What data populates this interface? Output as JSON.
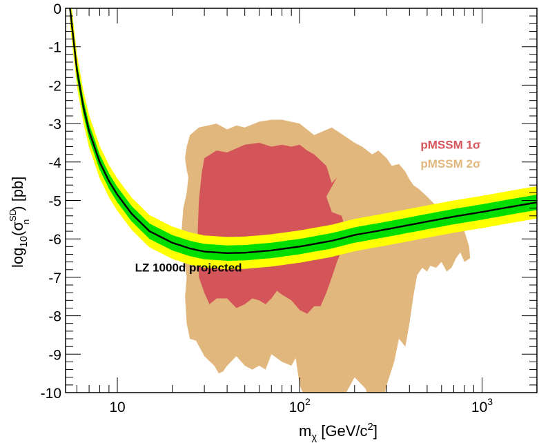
{
  "chart_data": {
    "type": "line",
    "x_scale": "log",
    "xlim": [
      5.2,
      2000
    ],
    "ylim": [
      -10,
      0
    ],
    "xlabel": "m_χ [GeV/c²]",
    "xlabel_parts": {
      "main": "m",
      "sub": "χ",
      "rest": " [GeV/c",
      "sup": "2",
      "close": "]"
    },
    "ylabel_parts": {
      "main": "log",
      "sub1": "10",
      "open": "(σ",
      "sup": "SD",
      "sub2": "n",
      "rest": ") [pb]"
    },
    "xticks": [
      {
        "value": 10,
        "label": "10"
      },
      {
        "value": 100,
        "label": "10",
        "sup": "2"
      },
      {
        "value": 1000,
        "label": "10",
        "sup": "3"
      }
    ],
    "yticks": [
      {
        "value": 0,
        "label": "0"
      },
      {
        "value": -1,
        "label": "-1"
      },
      {
        "value": -2,
        "label": "-2"
      },
      {
        "value": -3,
        "label": "-3"
      },
      {
        "value": -4,
        "label": "-4"
      },
      {
        "value": -5,
        "label": "-5"
      },
      {
        "value": -6,
        "label": "-6"
      },
      {
        "value": -7,
        "label": "-7"
      },
      {
        "value": -8,
        "label": "-8"
      },
      {
        "value": -9,
        "label": "-9"
      },
      {
        "value": -10,
        "label": "-10"
      }
    ],
    "series": [
      {
        "name": "LZ 1000d projected",
        "color": "#000000",
        "band_1sigma_color": "#00dd00",
        "band_2sigma_color": "#ffff00",
        "band_1sigma_halfwidth": 0.2,
        "band_2sigma_halfwidth": 0.42,
        "x": [
          5.5,
          6,
          6.5,
          7,
          8,
          9,
          10,
          12,
          15,
          20,
          25,
          30,
          40,
          50,
          70,
          100,
          150,
          200,
          300,
          500,
          700,
          1000,
          1500,
          2000
        ],
        "y": [
          0,
          -1.6,
          -2.55,
          -3.2,
          -4.0,
          -4.5,
          -4.85,
          -5.35,
          -5.8,
          -6.1,
          -6.25,
          -6.33,
          -6.37,
          -6.36,
          -6.3,
          -6.2,
          -6.05,
          -5.9,
          -5.75,
          -5.55,
          -5.42,
          -5.3,
          -5.15,
          -5.05
        ]
      }
    ],
    "regions": [
      {
        "name": "pMSSM 2σ",
        "color": "#e2b77d",
        "x": [
          25,
          28,
          35,
          40,
          45,
          50,
          60,
          70,
          80,
          100,
          120,
          150,
          180,
          200,
          220,
          250,
          270,
          300,
          320,
          350,
          380,
          400,
          420,
          450,
          500,
          550,
          600,
          650,
          700,
          750,
          800,
          850,
          860,
          800,
          760,
          720,
          680,
          640,
          600,
          560,
          520,
          500,
          470,
          440,
          420,
          400,
          380,
          350,
          330,
          300,
          280,
          250,
          230,
          200,
          180,
          170,
          160,
          150,
          140,
          130,
          110,
          100,
          95,
          90,
          80,
          70,
          65,
          60,
          55,
          50,
          45,
          40,
          38,
          36,
          34,
          30,
          27,
          25,
          24,
          23.5,
          24,
          23,
          22.5,
          23,
          24,
          24.5,
          24,
          23.5,
          24,
          25
        ],
        "y": [
          -3.3,
          -3.1,
          -3.0,
          -3.15,
          -3.05,
          -3.1,
          -2.95,
          -2.9,
          -2.9,
          -3.0,
          -3.3,
          -3.1,
          -3.35,
          -3.5,
          -3.6,
          -3.8,
          -3.7,
          -3.9,
          -4.1,
          -4.05,
          -4.25,
          -4.45,
          -4.6,
          -4.7,
          -4.9,
          -5.1,
          -5.3,
          -5.15,
          -5.3,
          -5.55,
          -5.8,
          -6.2,
          -6.5,
          -6.6,
          -6.35,
          -6.5,
          -6.75,
          -6.85,
          -6.6,
          -6.75,
          -6.7,
          -6.85,
          -6.75,
          -6.95,
          -7.5,
          -8.2,
          -8.8,
          -8.6,
          -9.2,
          -9.8,
          -10.5,
          -10.5,
          -9.9,
          -9.6,
          -10.0,
          -10.5,
          -10.5,
          -10.5,
          -10.5,
          -10.5,
          -10.3,
          -9.8,
          -9.1,
          -9.3,
          -9.2,
          -9.0,
          -9.4,
          -9.3,
          -9.4,
          -9.3,
          -9.05,
          -9.3,
          -9.45,
          -9.5,
          -9.3,
          -9.05,
          -8.65,
          -8.6,
          -8.2,
          -7.5,
          -7.0,
          -6.4,
          -5.8,
          -5.2,
          -4.8,
          -4.4,
          -4.2,
          -3.9,
          -3.6,
          -3.3
        ]
      },
      {
        "name": "pMSSM 1σ",
        "color": "#d45559",
        "x": [
          30,
          35,
          40,
          50,
          60,
          70,
          80,
          90,
          100,
          110,
          120,
          140,
          150,
          160,
          140,
          150,
          170,
          180,
          170,
          160,
          150,
          140,
          130,
          120,
          110,
          100,
          90,
          80,
          75,
          70,
          65,
          60,
          55,
          50,
          45,
          40,
          35,
          32,
          30,
          28,
          27.5,
          28,
          29,
          30
        ],
        "y": [
          -3.9,
          -3.7,
          -3.75,
          -3.55,
          -3.5,
          -3.6,
          -3.55,
          -3.6,
          -3.55,
          -3.7,
          -3.8,
          -4.1,
          -4.55,
          -4.4,
          -4.9,
          -5.3,
          -5.4,
          -5.8,
          -6.3,
          -6.6,
          -7.0,
          -7.4,
          -7.75,
          -7.75,
          -7.95,
          -7.85,
          -7.6,
          -7.45,
          -7.35,
          -7.55,
          -7.7,
          -7.6,
          -7.55,
          -7.7,
          -7.8,
          -7.55,
          -7.55,
          -7.7,
          -7.4,
          -7.0,
          -6.0,
          -5.0,
          -4.3,
          -3.9
        ]
      }
    ],
    "annotations": [
      {
        "text": "LZ 1000d projected",
        "x": 12.5,
        "y": -6.85,
        "color": "#000000"
      }
    ],
    "legend": {
      "placement": "top-right",
      "items": [
        {
          "text": "pMSSM 1σ",
          "color": "#d45559",
          "x": 460,
          "y": -3.65
        },
        {
          "text": "pMSSM 2σ",
          "color": "#e2b77d",
          "x": 460,
          "y": -4.15
        }
      ]
    },
    "grid": false
  }
}
